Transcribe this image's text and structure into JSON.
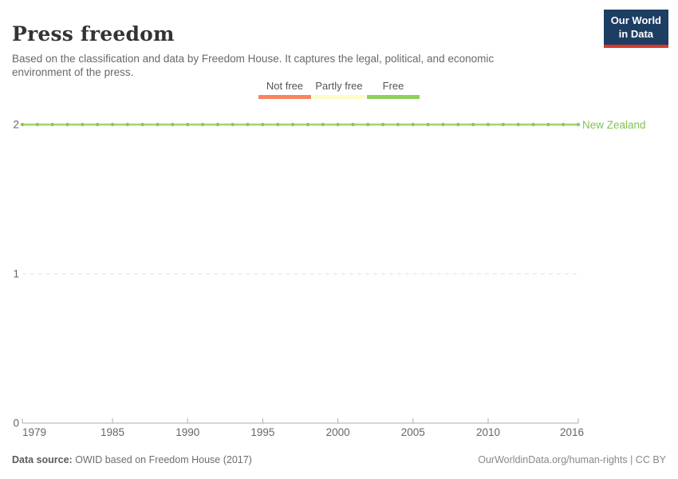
{
  "header": {
    "title": "Press freedom",
    "subtitle": "Based on the classification and data by Freedom House. It captures the legal, political, and economic environment of the press.",
    "logo": {
      "line1": "Our World",
      "line2": "in Data",
      "bg_color": "#1d3d63",
      "accent_color": "#d93a2b"
    }
  },
  "legend": {
    "items": [
      {
        "label": "Not free",
        "color": "#f8845f"
      },
      {
        "label": "Partly free",
        "color": "#fdfbc7"
      },
      {
        "label": "Free",
        "color": "#8ed05f"
      }
    ]
  },
  "chart_data": {
    "type": "line",
    "title": "Press freedom",
    "xlabel": "",
    "ylabel": "",
    "xlim": [
      1979,
      2016
    ],
    "ylim": [
      0,
      2
    ],
    "x_ticks": [
      1979,
      1985,
      1990,
      1995,
      2000,
      2005,
      2010,
      2016
    ],
    "y_ticks": [
      0,
      1,
      2
    ],
    "grid": "horizontal-dashed",
    "legend_position": "top-center",
    "value_legend": [
      "Not free",
      "Partly free",
      "Free"
    ],
    "series": [
      {
        "name": "New Zealand",
        "color": "#9fd36d",
        "marker_color": "#8cc75a",
        "x": [
          1979,
          1980,
          1981,
          1982,
          1983,
          1984,
          1985,
          1986,
          1987,
          1988,
          1989,
          1990,
          1991,
          1992,
          1993,
          1994,
          1995,
          1996,
          1997,
          1998,
          1999,
          2000,
          2001,
          2002,
          2003,
          2004,
          2005,
          2006,
          2007,
          2008,
          2009,
          2010,
          2011,
          2012,
          2013,
          2014,
          2015,
          2016
        ],
        "values": [
          2,
          2,
          2,
          2,
          2,
          2,
          2,
          2,
          2,
          2,
          2,
          2,
          2,
          2,
          2,
          2,
          2,
          2,
          2,
          2,
          2,
          2,
          2,
          2,
          2,
          2,
          2,
          2,
          2,
          2,
          2,
          2,
          2,
          2,
          2,
          2,
          2,
          2
        ]
      }
    ]
  },
  "footer": {
    "source_label": "Data source:",
    "source_text": " OWID based on Freedom House (2017)",
    "link_text": "OurWorldinData.org/human-rights | CC BY"
  }
}
